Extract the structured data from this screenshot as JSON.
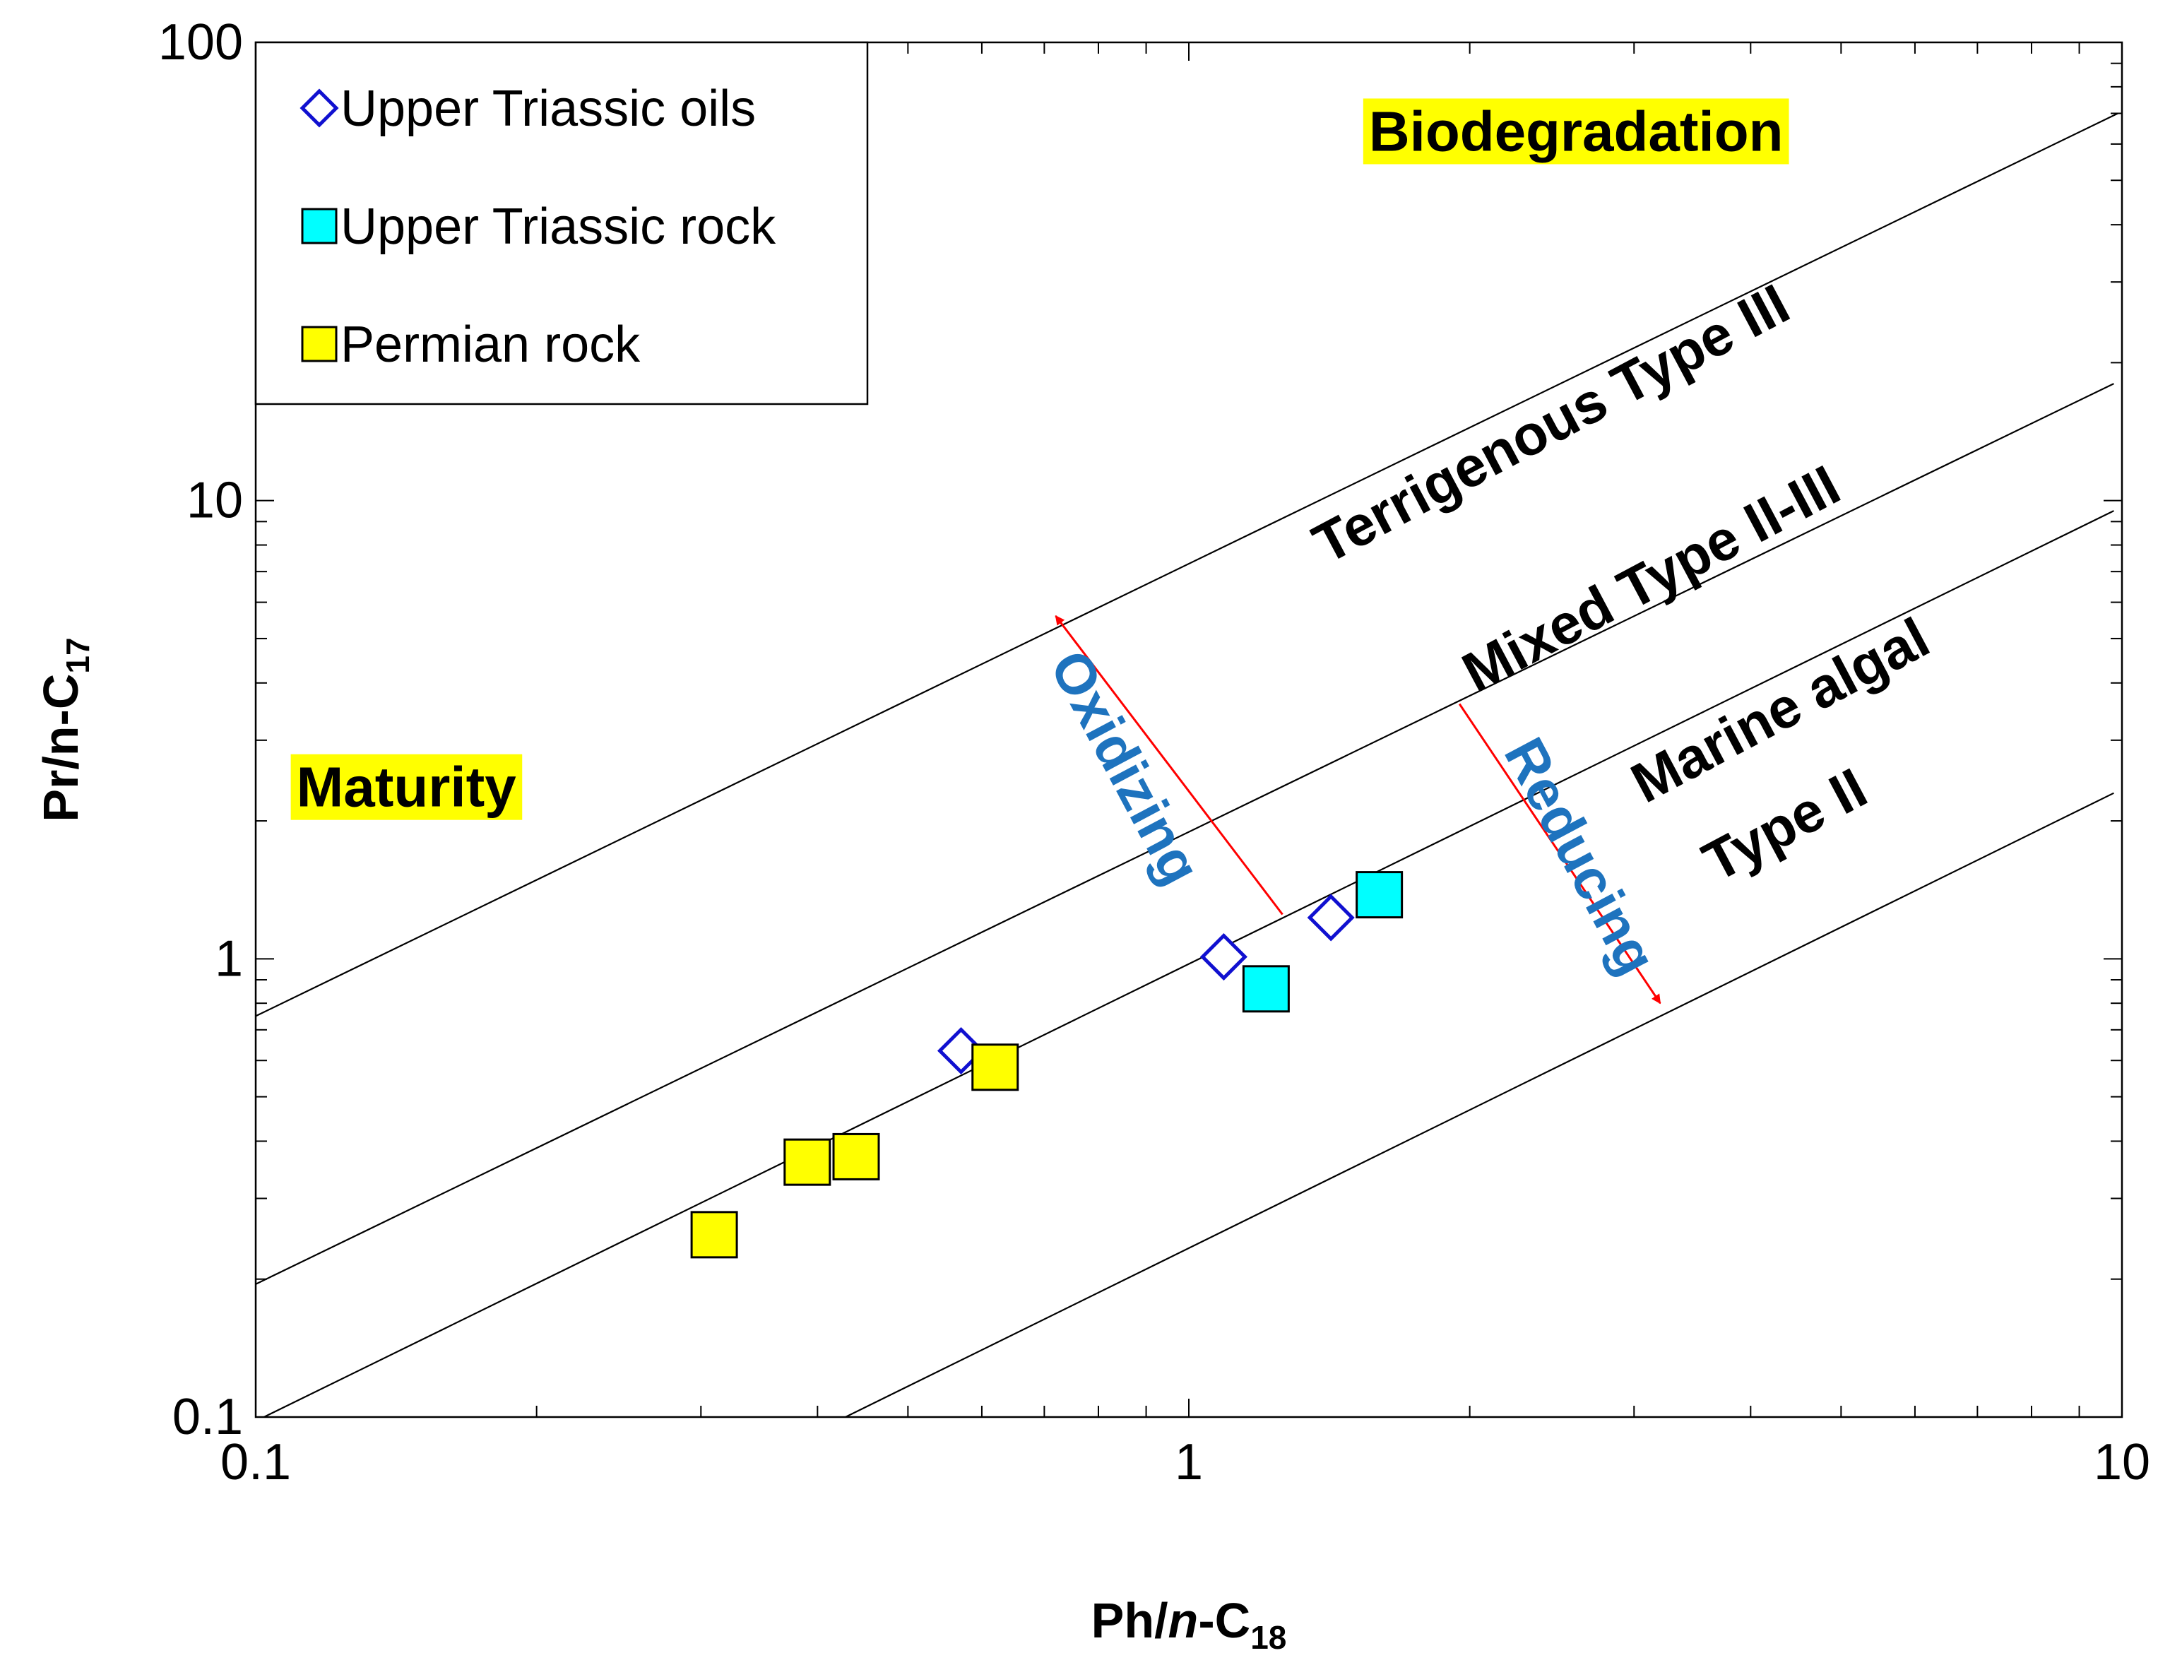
{
  "chart_data": {
    "type": "scatter",
    "x_scale": "log",
    "y_scale": "log",
    "xlim": [
      0.1,
      10
    ],
    "ylim": [
      0.1,
      100
    ],
    "xlabel": {
      "main": "Ph/",
      "italic": "n",
      "tail": "-C",
      "sub": "18"
    },
    "ylabel": {
      "main": "Pr/n-C",
      "sub": "17"
    },
    "x_ticks": [
      {
        "v": 0.1,
        "label": "0.1"
      },
      {
        "v": 1,
        "label": "1"
      },
      {
        "v": 10,
        "label": "10"
      }
    ],
    "y_ticks": [
      {
        "v": 0.1,
        "label": "0.1"
      },
      {
        "v": 1,
        "label": "1"
      },
      {
        "v": 10,
        "label": "10"
      },
      {
        "v": 100,
        "label": "100"
      }
    ],
    "legend": {
      "position": "top-left",
      "entries": [
        {
          "label": "Upper Triassic oils",
          "marker": "diamond"
        },
        {
          "label": "Upper Triassic rock",
          "marker": "square-cyan"
        },
        {
          "label": "Permian rock",
          "marker": "square-yellow"
        }
      ]
    },
    "series": [
      {
        "name": "Upper Triassic oils",
        "marker": "diamond",
        "color": "#1010d0",
        "points": [
          [
            0.57,
            0.63
          ],
          [
            1.09,
            1.01
          ],
          [
            1.42,
            1.23
          ]
        ]
      },
      {
        "name": "Upper Triassic rock",
        "marker": "square",
        "color": "#00ffff",
        "points": [
          [
            1.21,
            0.86
          ],
          [
            1.6,
            1.38
          ]
        ]
      },
      {
        "name": "Permian rock",
        "marker": "square",
        "color": "#ffff00",
        "points": [
          [
            0.31,
            0.25
          ],
          [
            0.39,
            0.36
          ],
          [
            0.44,
            0.37
          ],
          [
            0.62,
            0.58
          ]
        ]
      }
    ],
    "reference_lines": [
      {
        "name": "line-1",
        "x": [
          0.1,
          9.9
        ],
        "y": [
          0.75,
          70
        ]
      },
      {
        "name": "line-2",
        "x": [
          0.1,
          9.8
        ],
        "y": [
          0.195,
          18
        ]
      },
      {
        "name": "line-3",
        "x": [
          0.1,
          9.8
        ],
        "y": [
          0.098,
          9.5
        ]
      },
      {
        "name": "line-4",
        "x": [
          0.42,
          9.8
        ],
        "y": [
          0.098,
          2.3
        ]
      }
    ],
    "region_labels": [
      {
        "text": "Terrigenous Type III",
        "x": 2.5,
        "y": 13.5,
        "angle": -28
      },
      {
        "text": "Mixed Type II-III",
        "x": 3.2,
        "y": 6.2,
        "angle": -28
      },
      {
        "text": "Marine algal",
        "x": 4.4,
        "y": 3.2,
        "angle": -28
      },
      {
        "text": "Type II",
        "x": 4.45,
        "y": 1.8,
        "angle": -28
      }
    ],
    "highlight_labels": [
      {
        "text": "Biodegradation",
        "x": 2.6,
        "y": 58
      },
      {
        "text": "Maturity",
        "x": 0.145,
        "y": 2.15
      }
    ],
    "arrows": [
      {
        "name": "oxidizing",
        "label": "Oxidizing",
        "from": [
          1.26,
          1.25
        ],
        "to": [
          0.72,
          5.6
        ],
        "label_at": [
          0.82,
          2.5
        ],
        "label_angle": 62
      },
      {
        "name": "reducing",
        "label": "Reducing",
        "from": [
          1.95,
          3.6
        ],
        "to": [
          3.2,
          0.8
        ],
        "label_at": [
          2.52,
          1.6
        ],
        "label_angle": 62
      }
    ],
    "grid": false
  },
  "colors": {
    "axis": "#000000",
    "highlight": "#ffff00",
    "arrow": "#ff0000",
    "arrow_label": "#1e73be",
    "diamond_stroke": "#1010d0",
    "cyan": "#00ffff",
    "yellow": "#ffff00"
  }
}
